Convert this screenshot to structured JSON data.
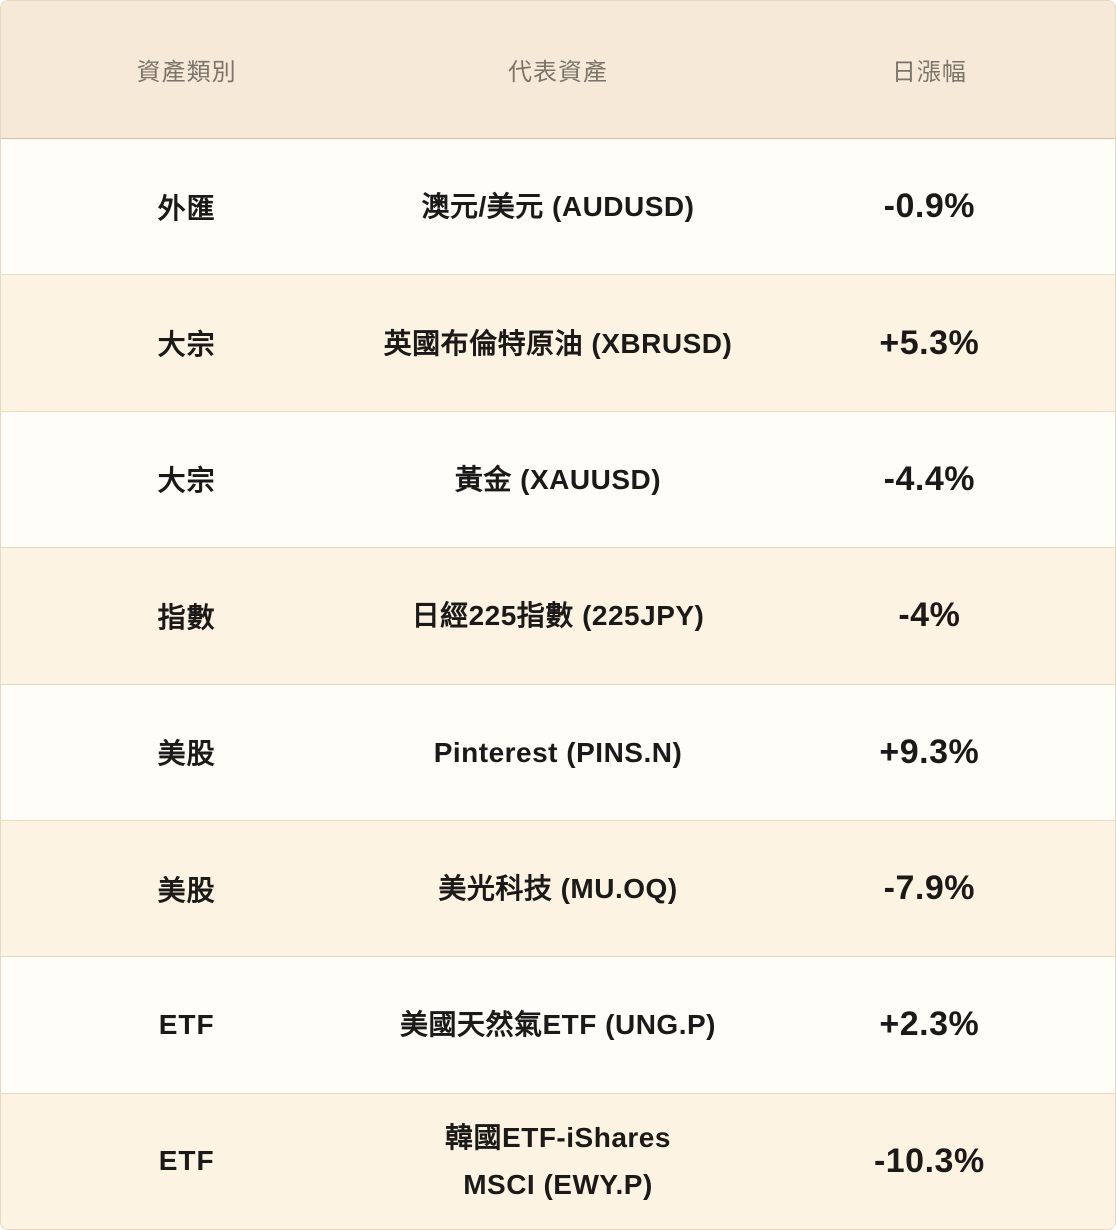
{
  "colors": {
    "header_bg": "#f6e9d8",
    "row_bg_light": "#fffdf8",
    "row_bg_cream": "#fdf3e3",
    "header_text": "#7b746a",
    "body_text": "#1b1a18",
    "header_divider": "#d9bd9e",
    "row_divider": "#ecd9c1"
  },
  "chart_data": {
    "type": "table",
    "columns": [
      "資產類別",
      "代表資產",
      "日漲幅"
    ],
    "rows": [
      {
        "category": "外匯",
        "asset": "澳元/美元 (AUDUSD)",
        "change": "-0.9%"
      },
      {
        "category": "大宗",
        "asset": "英國布倫特原油 (XBRUSD)",
        "change": "+5.3%"
      },
      {
        "category": "大宗",
        "asset": "黃金 (XAUUSD)",
        "change": "-4.4%"
      },
      {
        "category": "指數",
        "asset": "日經225指數 (225JPY)",
        "change": "-4%"
      },
      {
        "category": "美股",
        "asset": "Pinterest (PINS.N)",
        "change": "+9.3%"
      },
      {
        "category": "美股",
        "asset": "美光科技 (MU.OQ)",
        "change": "-7.9%"
      },
      {
        "category": "ETF",
        "asset": "美國天然氣ETF (UNG.P)",
        "change": "+2.3%"
      },
      {
        "category": "ETF",
        "asset": "韓國ETF-iShares\nMSCI (EWY.P)",
        "change": "-10.3%"
      }
    ],
    "changes_numeric_percent": [
      -0.9,
      5.3,
      -4.4,
      -4,
      9.3,
      -7.9,
      2.3,
      -10.3
    ],
    "layout": {
      "row_striping": [
        "light",
        "cream"
      ],
      "alignment": "center",
      "legend": "none",
      "grid": "horizontal-dividers"
    }
  }
}
